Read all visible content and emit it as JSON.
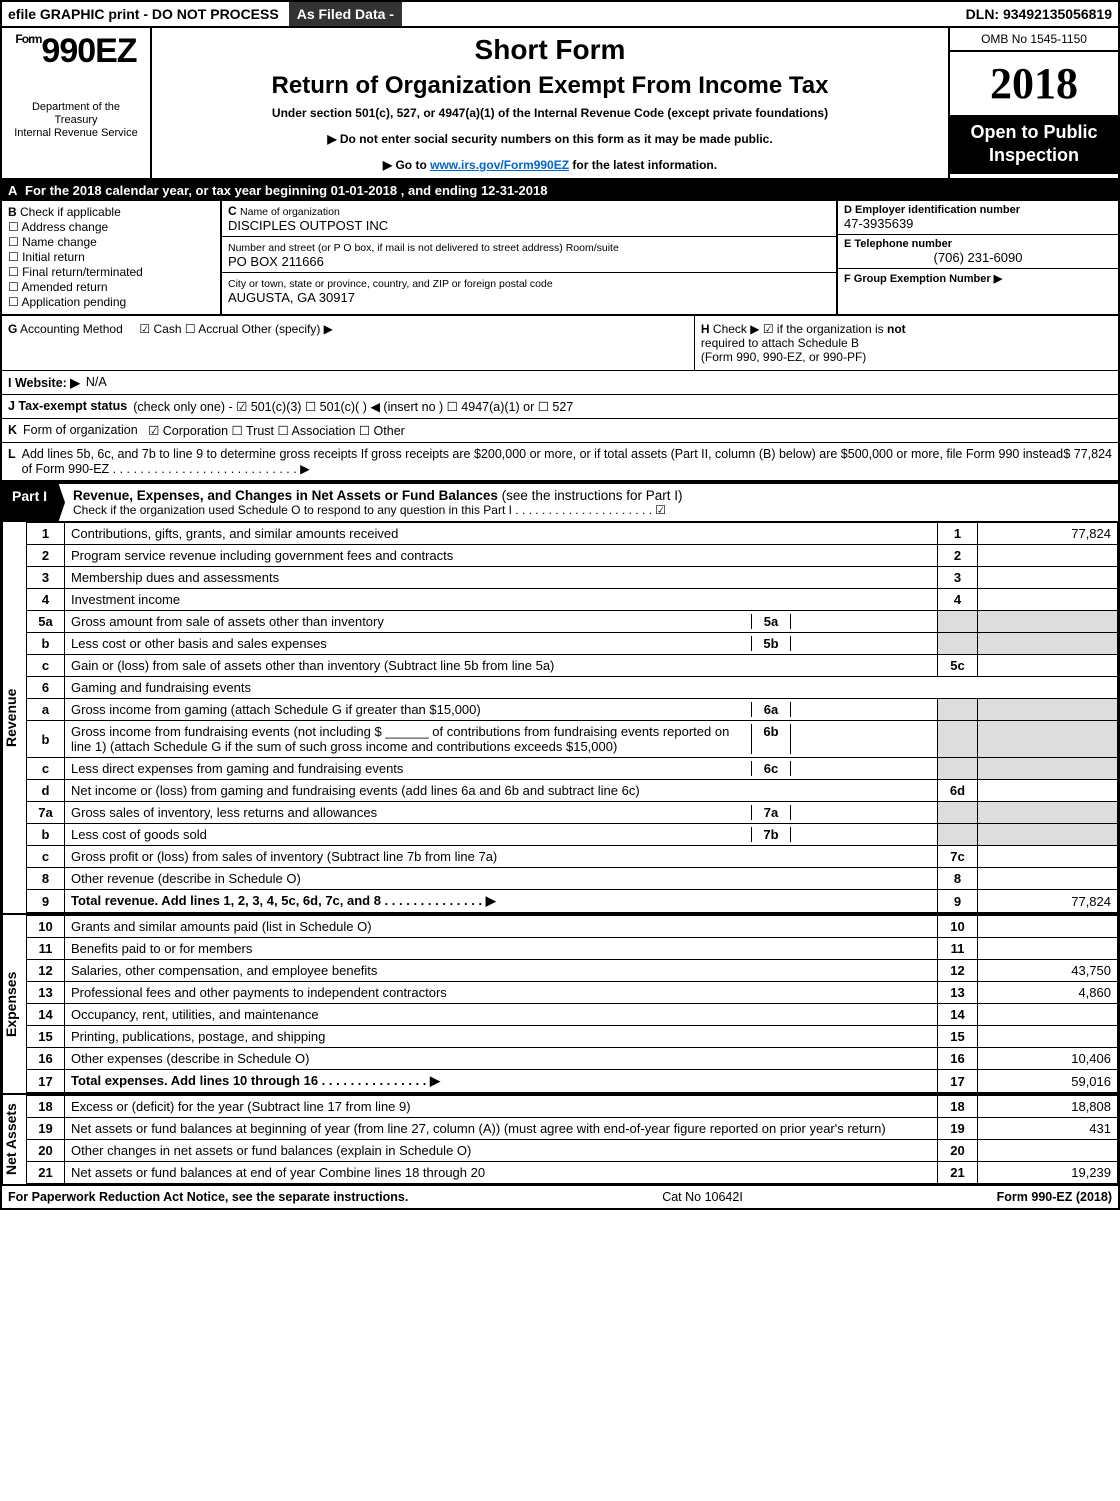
{
  "topbar": {
    "efile": "efile GRAPHIC print - DO NOT PROCESS",
    "asfiled": "As Filed Data -",
    "dln": "DLN: 93492135056819"
  },
  "header": {
    "formWord": "Form",
    "formNumber": "990EZ",
    "dept1": "Department of the",
    "dept2": "Treasury",
    "dept3": "Internal Revenue Service",
    "shortForm": "Short Form",
    "mainTitle": "Return of Organization Exempt From Income Tax",
    "under": "Under section 501(c), 527, or 4947(a)(1) of the Internal Revenue Code (except private foundations)",
    "arrow1": "▶ Do not enter social security numbers on this form as it may be made public.",
    "arrow2_pre": "▶ Go to ",
    "arrow2_link": "www.irs.gov/Form990EZ",
    "arrow2_post": " for the latest information.",
    "omb": "OMB No 1545-1150",
    "year": "2018",
    "open": "Open to Public Inspection"
  },
  "lineA": {
    "label": "A",
    "text_pre": "For the 2018 calendar year, or tax year beginning ",
    "begin": "01-01-2018",
    "mid": ", and ending ",
    "end": "12-31-2018"
  },
  "colB": {
    "title_b": "B",
    "title_text": "Check if applicable",
    "items": [
      "Address change",
      "Name change",
      "Initial return",
      "Final return/terminated",
      "Amended return",
      "Application pending"
    ]
  },
  "colC": {
    "c_label": "C",
    "c_hint": "Name of organization",
    "c_val": "DISCIPLES OUTPOST INC",
    "addr_hint": "Number and street (or P O box, if mail is not delivered to street address)    Room/suite",
    "addr_val": "PO BOX 211666",
    "city_hint": "City or town, state or province, country, and ZIP or foreign postal code",
    "city_val": "AUGUSTA, GA  30917"
  },
  "colD": {
    "d_label": "D Employer identification number",
    "d_val": "47-3935639",
    "e_label": "E Telephone number",
    "e_val": "(706) 231-6090",
    "f_label": "F Group Exemption Number   ▶",
    "f_val": ""
  },
  "gh": {
    "g_label": "G",
    "g_text": "Accounting Method",
    "g_opts": "☑ Cash   ☐ Accrual   Other (specify) ▶",
    "h_label": "H",
    "h_text1": "Check ▶  ☑  if the organization is ",
    "h_not": "not",
    "h_text2": "required to attach Schedule B",
    "h_text3": "(Form 990, 990-EZ, or 990-PF)"
  },
  "iRow": {
    "label": "I Website: ▶",
    "val": "N/A"
  },
  "jRow": {
    "label": "J Tax-exempt status",
    "text": "(check only one) - ☑ 501(c)(3)  ☐ 501(c)( ) ◀ (insert no ) ☐ 4947(a)(1) or ☐ 527"
  },
  "kRow": {
    "label": "K",
    "text1": "Form of organization",
    "text2": "☑ Corporation   ☐ Trust   ☐ Association   ☐ Other"
  },
  "lRow": {
    "label": "L",
    "text": "Add lines 5b, 6c, and 7b to line 9 to determine gross receipts  If gross receipts are $200,000 or more, or if total assets (Part II, column (B) below) are $500,000 or more, file Form 990 instead of Form 990-EZ  . . . . . . . . . . . . . . . . . . . . . . . . . . . ▶",
    "val": "$ 77,824"
  },
  "part1": {
    "badge": "Part I",
    "title": "Revenue, Expenses, and Changes in Net Assets or Fund Balances",
    "hint": "(see the instructions for Part I)",
    "sub": "Check if the organization used Schedule O to respond to any question in this Part I . . . . . . . . . . . . . . . . . . . . . ☑"
  },
  "sections": {
    "revenue": "Revenue",
    "expenses": "Expenses",
    "net": "Net Assets"
  },
  "lines": [
    {
      "n": "1",
      "d": "Contributions, gifts, grants, and similar amounts received",
      "r": "1",
      "v": "77,824"
    },
    {
      "n": "2",
      "d": "Program service revenue including government fees and contracts",
      "r": "2",
      "v": ""
    },
    {
      "n": "3",
      "d": "Membership dues and assessments",
      "r": "3",
      "v": ""
    },
    {
      "n": "4",
      "d": "Investment income",
      "r": "4",
      "v": ""
    },
    {
      "n": "5a",
      "d": "Gross amount from sale of assets other than inventory",
      "ib": "5a",
      "iv": ""
    },
    {
      "n": "b",
      "d": "Less  cost or other basis and sales expenses",
      "ib": "5b",
      "iv": ""
    },
    {
      "n": "c",
      "d": "Gain or (loss) from sale of assets other than inventory (Subtract line 5b from line 5a)",
      "r": "5c",
      "v": ""
    },
    {
      "n": "6",
      "d": "Gaming and fundraising events"
    },
    {
      "n": "a",
      "d": "Gross income from gaming (attach Schedule G if greater than $15,000)",
      "ib": "6a",
      "iv": ""
    },
    {
      "n": "b",
      "d": "Gross income from fundraising events (not including $ ______ of contributions from fundraising events reported on line 1) (attach Schedule G if the sum of such gross income and contributions exceeds $15,000)",
      "ib": "6b",
      "iv": ""
    },
    {
      "n": "c",
      "d": "Less  direct expenses from gaming and fundraising events",
      "ib": "6c",
      "iv": ""
    },
    {
      "n": "d",
      "d": "Net income or (loss) from gaming and fundraising events (add lines 6a and 6b and subtract line 6c)",
      "r": "6d",
      "v": ""
    },
    {
      "n": "7a",
      "d": "Gross sales of inventory, less returns and allowances",
      "ib": "7a",
      "iv": ""
    },
    {
      "n": "b",
      "d": "Less  cost of goods sold",
      "ib": "7b",
      "iv": ""
    },
    {
      "n": "c",
      "d": "Gross profit or (loss) from sales of inventory (Subtract line 7b from line 7a)",
      "r": "7c",
      "v": ""
    },
    {
      "n": "8",
      "d": "Other revenue (describe in Schedule O)",
      "r": "8",
      "v": ""
    },
    {
      "n": "9",
      "d": "Total revenue. Add lines 1, 2, 3, 4, 5c, 6d, 7c, and 8   . . . . . . . . . . . . . . ▶",
      "r": "9",
      "v": "77,824",
      "bold": true
    }
  ],
  "expLines": [
    {
      "n": "10",
      "d": "Grants and similar amounts paid (list in Schedule O)",
      "r": "10",
      "v": ""
    },
    {
      "n": "11",
      "d": "Benefits paid to or for members",
      "r": "11",
      "v": ""
    },
    {
      "n": "12",
      "d": "Salaries, other compensation, and employee benefits",
      "r": "12",
      "v": "43,750"
    },
    {
      "n": "13",
      "d": "Professional fees and other payments to independent contractors",
      "r": "13",
      "v": "4,860"
    },
    {
      "n": "14",
      "d": "Occupancy, rent, utilities, and maintenance",
      "r": "14",
      "v": ""
    },
    {
      "n": "15",
      "d": "Printing, publications, postage, and shipping",
      "r": "15",
      "v": ""
    },
    {
      "n": "16",
      "d": "Other expenses (describe in Schedule O)",
      "r": "16",
      "v": "10,406"
    },
    {
      "n": "17",
      "d": "Total expenses. Add lines 10 through 16   . . . . . . . . . . . . . . . ▶",
      "r": "17",
      "v": "59,016",
      "bold": true
    }
  ],
  "netLines": [
    {
      "n": "18",
      "d": "Excess or (deficit) for the year (Subtract line 17 from line 9)",
      "r": "18",
      "v": "18,808"
    },
    {
      "n": "19",
      "d": "Net assets or fund balances at beginning of year (from line 27, column (A)) (must agree with end-of-year figure reported on prior year's return)",
      "r": "19",
      "v": "431"
    },
    {
      "n": "20",
      "d": "Other changes in net assets or fund balances (explain in Schedule O)",
      "r": "20",
      "v": ""
    },
    {
      "n": "21",
      "d": "Net assets or fund balances at end of year  Combine lines 18 through 20",
      "r": "21",
      "v": "19,239"
    }
  ],
  "footer": {
    "left": "For Paperwork Reduction Act Notice, see the separate instructions.",
    "mid": "Cat  No  10642I",
    "right": "Form 990-EZ (2018)"
  }
}
